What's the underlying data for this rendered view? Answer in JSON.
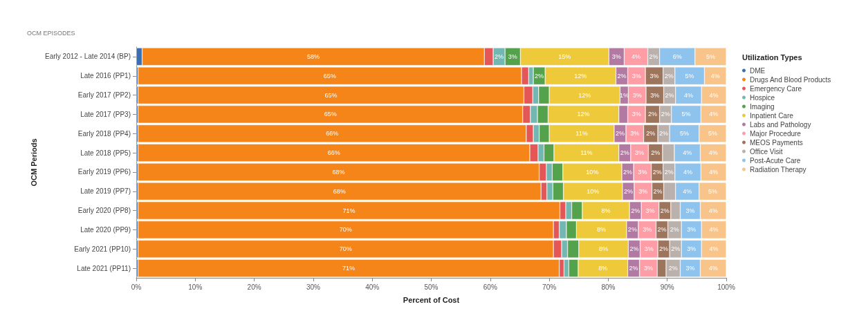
{
  "chart_data": {
    "type": "bar",
    "orientation": "horizontal",
    "stacked": true,
    "title": "OCM EPISODES",
    "xlabel": "Percent of Cost",
    "ylabel": "OCM Periods",
    "legend_title": "Utilization Types",
    "legend": "right",
    "grid": false,
    "categories": [
      "Early 2012 - Late 2014 (BP)",
      "Late 2016 (PP1)",
      "Early 2017 (PP2)",
      "Late 2017 (PP3)",
      "Early 2018 (PP4)",
      "Late 2018 (PP5)",
      "Early 2019 (PP6)",
      "Late 2019 (PP7)",
      "Early 2020 (PP8)",
      "Late 2020 (PP9)",
      "Early 2021 (PP10)",
      "Late 2021 (PP11)"
    ],
    "xlim": [
      0,
      100
    ],
    "xticks": [
      {
        "value": 0,
        "label": "0%"
      },
      {
        "value": 10,
        "label": "10%"
      },
      {
        "value": 20,
        "label": "20%"
      },
      {
        "value": 30,
        "label": "30%"
      },
      {
        "value": 40,
        "label": "40%"
      },
      {
        "value": 50,
        "label": "50%"
      },
      {
        "value": 60,
        "label": "60%"
      },
      {
        "value": 70,
        "label": "70%"
      },
      {
        "value": 80,
        "label": "80%"
      },
      {
        "value": 90,
        "label": "90%"
      },
      {
        "value": 100,
        "label": "100%"
      }
    ],
    "series": [
      {
        "name": "DME",
        "color": "#3d6fb0",
        "values": [
          1,
          0.3,
          0.3,
          0.3,
          0.3,
          0.3,
          0.3,
          0.3,
          0.3,
          0.3,
          0.3,
          0.3
        ]
      },
      {
        "name": "Drugs And Blood Products",
        "color": "#f58518",
        "values": [
          58,
          65,
          65.4,
          65.2,
          65.8,
          66.4,
          68,
          68.3,
          71.5,
          70.4,
          70.4,
          71.4
        ],
        "value_labels": [
          "58%",
          "65%",
          "65%",
          "65%",
          "66%",
          "66%",
          "68%",
          "68%",
          "71%",
          "70%",
          "70%",
          "71%"
        ]
      },
      {
        "name": "Emergency Care",
        "color": "#e45756",
        "values": [
          1.5,
          1.2,
          1.5,
          1.3,
          1.2,
          1.4,
          1.2,
          1,
          1,
          1,
          1.4,
          0.8
        ]
      },
      {
        "name": "Hospice",
        "color": "#72b7b2",
        "values": [
          2,
          0.8,
          1,
          1.2,
          1,
          1,
          1,
          1,
          1,
          1.2,
          1,
          0.8
        ],
        "value_labels": [
          "2%",
          null,
          null,
          null,
          null,
          null,
          null,
          null,
          null,
          null,
          null,
          null
        ]
      },
      {
        "name": "Imaging",
        "color": "#54a24b",
        "values": [
          2.6,
          2,
          1.8,
          1.8,
          1.7,
          1.7,
          1.8,
          1.8,
          1.8,
          1.7,
          1.9,
          1.6
        ],
        "value_labels": [
          "3%",
          "2%",
          null,
          null,
          null,
          null,
          null,
          null,
          null,
          null,
          null,
          null
        ]
      },
      {
        "name": "Inpatient Care",
        "color": "#eeca3b",
        "values": [
          15,
          12,
          12,
          12,
          11,
          11,
          10,
          10,
          8,
          8.5,
          8.4,
          8.4
        ],
        "value_labels": [
          "15%",
          "12%",
          "12%",
          "12%",
          "11%",
          "11%",
          "10%",
          "10%",
          "8%",
          "8%",
          "8%",
          "8%"
        ]
      },
      {
        "name": "Labs and Pathology",
        "color": "#b279a2",
        "values": [
          2.6,
          2,
          1.4,
          1.5,
          2,
          2,
          2,
          2,
          2,
          2,
          2,
          2
        ],
        "value_labels": [
          "3%",
          "2%",
          "1%",
          null,
          "2%",
          "2%",
          "2%",
          "2%",
          "2%",
          "2%",
          "2%",
          "2%"
        ]
      },
      {
        "name": "Major Procedure",
        "color": "#ff9da6",
        "values": [
          4,
          3,
          3,
          3,
          3,
          3,
          3,
          3,
          3,
          3,
          3,
          3
        ],
        "value_labels": [
          "4%",
          "3%",
          "3%",
          "3%",
          "3%",
          "3%",
          "3%",
          "3%",
          "3%",
          "3%",
          "3%",
          "3%"
        ]
      },
      {
        "name": "MEOS Payments",
        "color": "#9d755d",
        "values": [
          null,
          3,
          3,
          2.4,
          2.4,
          2.4,
          2,
          2,
          2,
          2,
          2,
          1.5
        ],
        "value_labels": [
          null,
          "3%",
          "3%",
          "2%",
          "2%",
          "2%",
          "2%",
          "2%",
          "2%",
          "2%",
          "2%",
          null
        ]
      },
      {
        "name": "Office Visit",
        "color": "#bab0ac",
        "values": [
          2,
          2,
          2,
          2,
          2,
          2,
          2,
          2,
          1.6,
          2.3,
          2,
          2.4
        ],
        "value_labels": [
          "2%",
          "2%",
          "2%",
          "2%",
          "2%",
          null,
          "2%",
          null,
          null,
          "2%",
          "2%",
          "2%"
        ]
      },
      {
        "name": "Post-Acute Care",
        "color": "#8ec3ed",
        "values": [
          6,
          5,
          4.4,
          5,
          5,
          4.4,
          4.4,
          4,
          3.4,
          3.4,
          3.4,
          3.4
        ],
        "value_labels": [
          "6%",
          "5%",
          "4%",
          "5%",
          "5%",
          "4%",
          "4%",
          "4%",
          "3%",
          "3%",
          "3%",
          "3%"
        ]
      },
      {
        "name": "Radiation Therapy",
        "color": "#f9c48a",
        "values": [
          5.3,
          3.7,
          4.2,
          4.3,
          4.6,
          4.4,
          4.3,
          4.6,
          4.4,
          4.2,
          4.2,
          4.4
        ],
        "value_labels": [
          "5%",
          "4%",
          "4%",
          "4%",
          "5%",
          "4%",
          "4%",
          "5%",
          "4%",
          "4%",
          "4%",
          "4%"
        ]
      }
    ]
  }
}
